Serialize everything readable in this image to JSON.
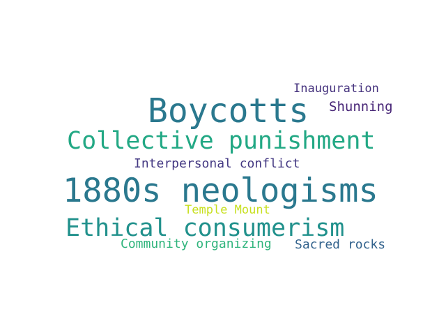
{
  "word_cloud": {
    "words": [
      {
        "text": "1880s neologisms",
        "weight": 1.0,
        "color": "#2a788e"
      },
      {
        "text": "Boycotts",
        "weight": 0.85,
        "color": "#2a788e"
      },
      {
        "text": "Collective punishment",
        "weight": 0.65,
        "color": "#22a884"
      },
      {
        "text": "Ethical consumerism",
        "weight": 0.65,
        "color": "#21918c"
      },
      {
        "text": "Interpersonal conflict",
        "weight": 0.35,
        "color": "#443983"
      },
      {
        "text": "Inauguration",
        "weight": 0.33,
        "color": "#46337e"
      },
      {
        "text": "Shunning",
        "weight": 0.35,
        "color": "#482677"
      },
      {
        "text": "Temple Mount",
        "weight": 0.33,
        "color": "#c8e020"
      },
      {
        "text": "Community organizing",
        "weight": 0.35,
        "color": "#2fb47c"
      },
      {
        "text": "Sacred rocks",
        "weight": 0.35,
        "color": "#33638d"
      }
    ]
  }
}
